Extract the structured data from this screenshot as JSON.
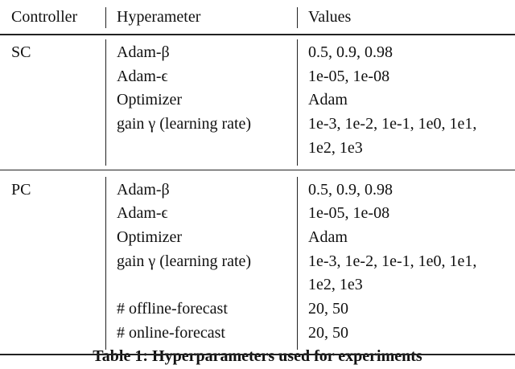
{
  "table": {
    "header": [
      "Controller",
      "Hyperameter",
      "Values"
    ],
    "groups": [
      {
        "controller": "SC",
        "rows": [
          {
            "param": "Adam-β",
            "values": [
              "0.5, 0.9, 0.98"
            ]
          },
          {
            "param": "Adam-ϵ",
            "values": [
              "1e-05, 1e-08"
            ]
          },
          {
            "param": "Optimizer",
            "values": [
              "Adam"
            ]
          },
          {
            "param": "gain γ (learning rate)",
            "values": [
              "1e-3, 1e-2, 1e-1, 1e0, 1e1,",
              "1e2, 1e3"
            ]
          }
        ]
      },
      {
        "controller": "PC",
        "rows": [
          {
            "param": "Adam-β",
            "values": [
              "0.5, 0.9, 0.98"
            ]
          },
          {
            "param": "Adam-ϵ",
            "values": [
              "1e-05, 1e-08"
            ]
          },
          {
            "param": "Optimizer",
            "values": [
              "Adam"
            ]
          },
          {
            "param": "gain γ (learning rate)",
            "values": [
              "1e-3, 1e-2, 1e-1, 1e0, 1e1,",
              "1e2, 1e3"
            ]
          },
          {
            "param": "# offline-forecast",
            "values": [
              "20, 50"
            ]
          },
          {
            "param": "# online-forecast",
            "values": [
              "20, 50"
            ]
          }
        ]
      }
    ],
    "caption": "Table 1: Hyperparameters used for experiments"
  }
}
